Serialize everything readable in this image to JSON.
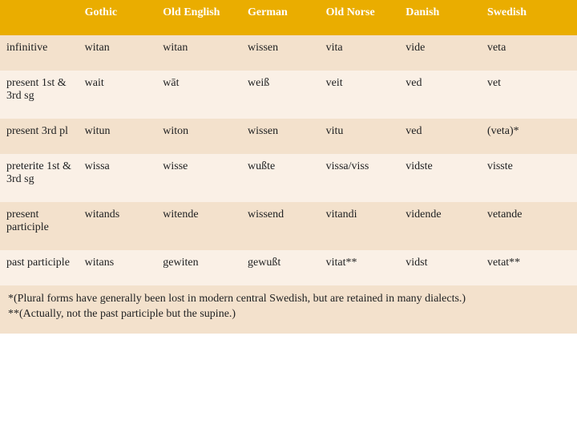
{
  "table": {
    "header_bg": "#eaad00",
    "header_fg": "#ffffff",
    "row_odd_bg": "#f3e1cc",
    "row_even_bg": "#faf0e6",
    "text_color": "#202122",
    "font_family": "Georgia, serif",
    "font_size_pt": 11,
    "columns": [
      "",
      "Gothic",
      "Old English",
      "German",
      "Old Norse",
      "Danish",
      "Swedish"
    ],
    "rows": [
      [
        "infinitive",
        "witan",
        "witan",
        "wissen",
        "vita",
        "vide",
        "veta"
      ],
      [
        "present 1st & 3rd sg",
        "wait",
        "wāt",
        "weiß",
        "veit",
        "ved",
        "vet"
      ],
      [
        "present 3rd pl",
        "witun",
        "witon",
        "wissen",
        "vitu",
        "ved",
        "(veta)*"
      ],
      [
        "preterite 1st & 3rd sg",
        "wissa",
        "wisse",
        "wußte",
        "vissa/viss",
        "vidste",
        "visste"
      ],
      [
        "present participle",
        "witands",
        "witende",
        "wissend",
        "vitandi",
        "vidende",
        "vetande"
      ],
      [
        "past participle",
        "witans",
        "gewiten",
        "gewußt",
        "vitat**",
        "vidst",
        "vetat**"
      ]
    ],
    "footnote_1": "*(Plural forms have generally been lost in modern central Swedish, but are retained in many dialects.)",
    "footnote_2": "**(Actually, not the past participle but the supine.)"
  }
}
